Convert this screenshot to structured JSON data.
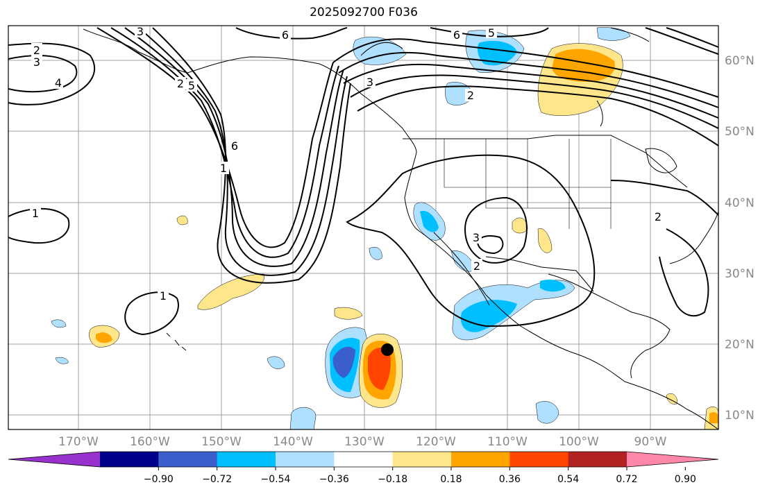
{
  "title": "2025092700 F036",
  "map": {
    "longitude_labels": [
      "170°W",
      "160°W",
      "150°W",
      "140°W",
      "130°W",
      "120°W",
      "110°W",
      "100°W",
      "90°W"
    ],
    "latitude_labels": [
      "60°N",
      "50°N",
      "40°N",
      "30°N",
      "20°N",
      "10°N"
    ],
    "contour_labels": [
      "2",
      "3",
      "4",
      "3",
      "6",
      "5",
      "6",
      "5",
      "3",
      "2",
      "6",
      "1",
      "1",
      "3",
      "2",
      "2",
      "1",
      "2"
    ],
    "storm_marker": "black-dot",
    "colors": {
      "land_border": "#000000",
      "grid": "#a0a0a0",
      "frame": "#000000"
    }
  },
  "colorbar": {
    "ticks": [
      "−0.90",
      "−0.72",
      "−0.54",
      "−0.36",
      "−0.18",
      "0.18",
      "0.36",
      "0.54",
      "0.72",
      "0.90"
    ],
    "bins": [
      "#9932cc",
      "#00008b",
      "#3a5fcd",
      "#00bfff",
      "#afe0ff",
      "#ffffff",
      "#ffe68a",
      "#ffa500",
      "#ff4500",
      "#b22222",
      "#ff88aa"
    ]
  }
}
